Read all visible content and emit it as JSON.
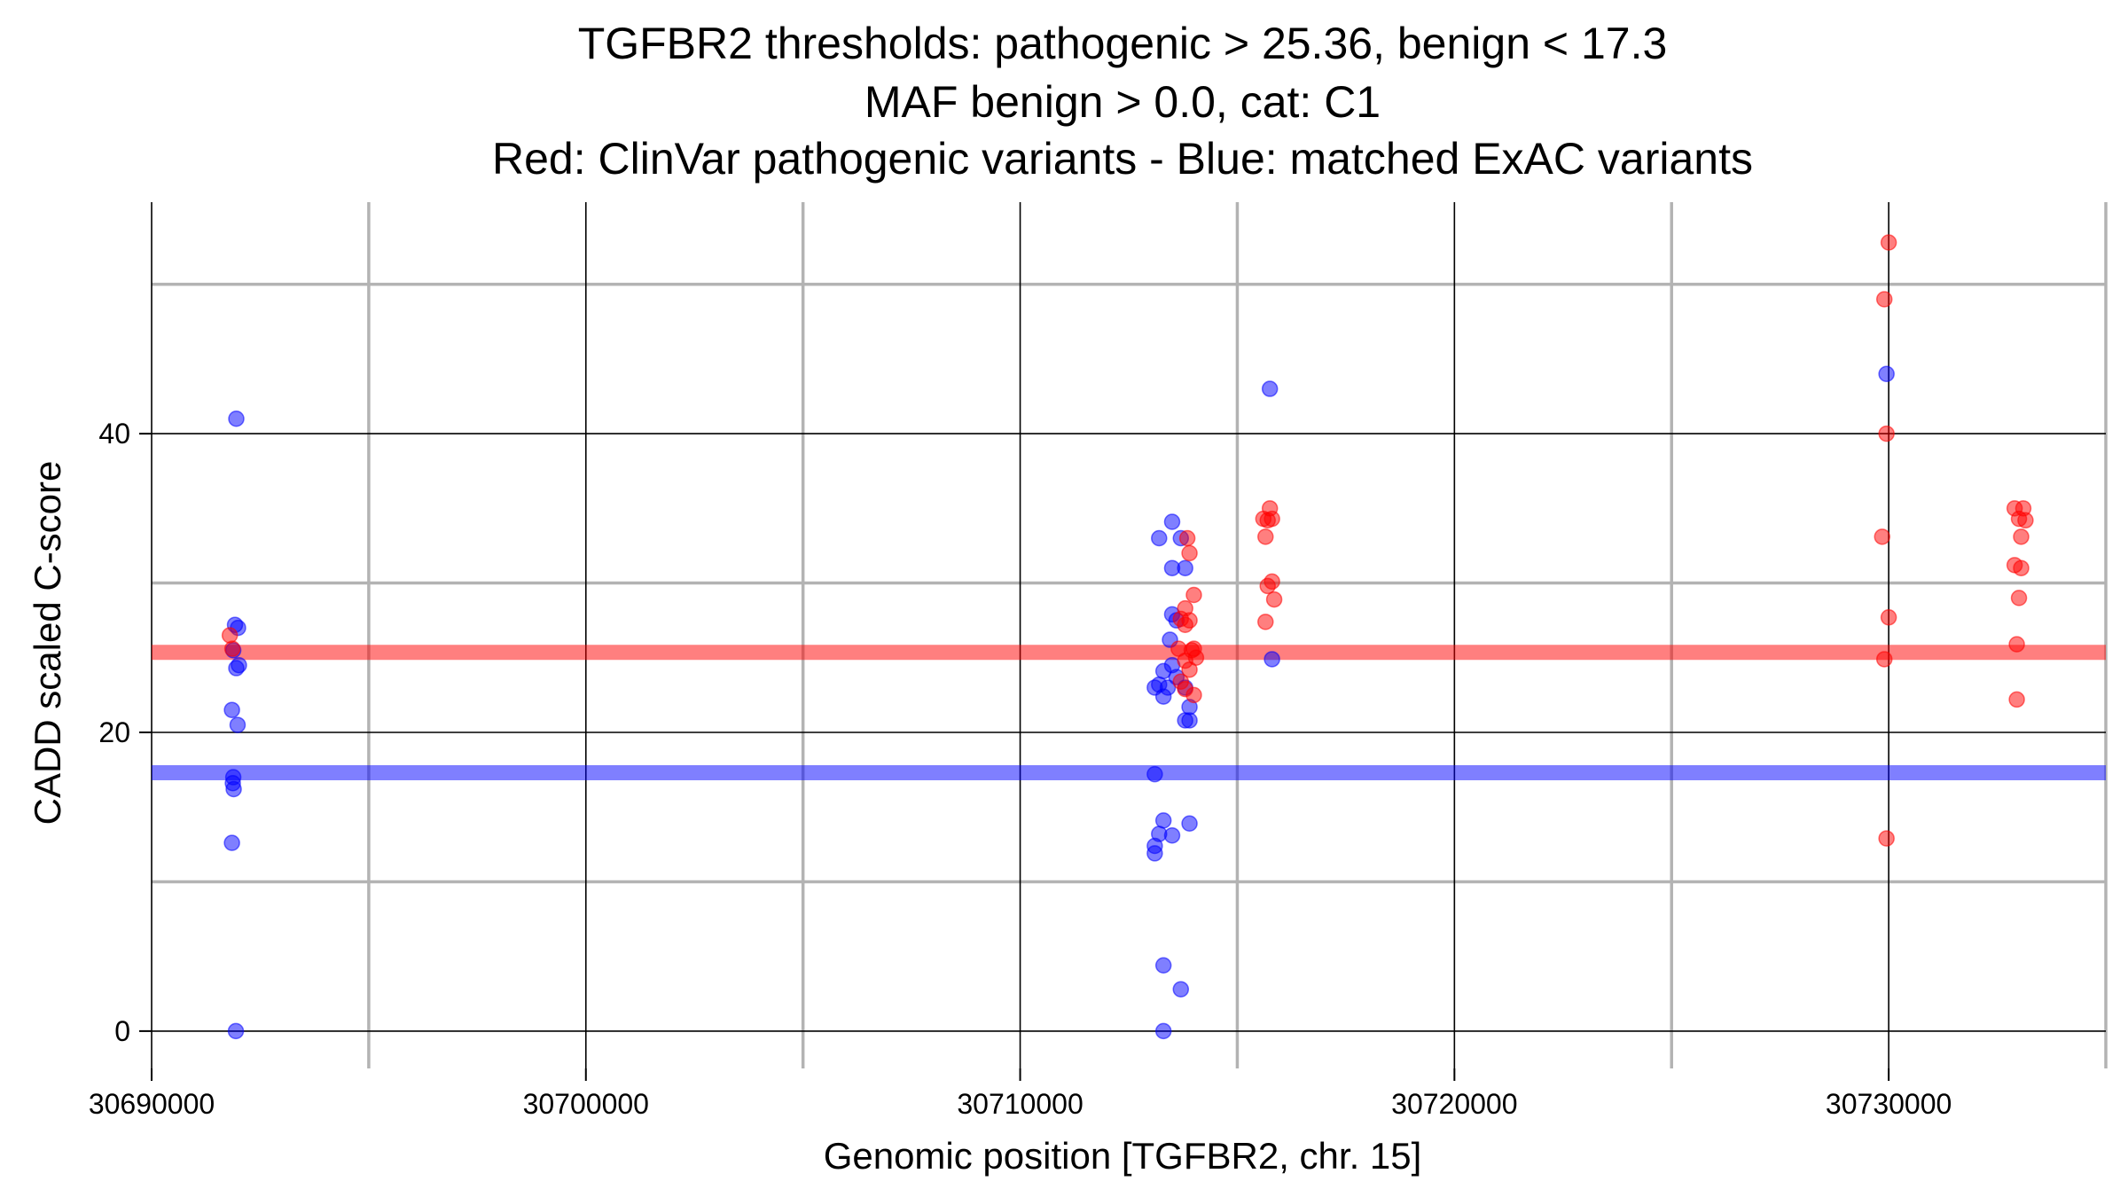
{
  "chart_data": {
    "type": "scatter",
    "title_lines": [
      "TGFBR2 thresholds: pathogenic > 25.36, benign < 17.3",
      "MAF benign > 0.0, cat: C1",
      "Red: ClinVar pathogenic variants - Blue: matched ExAC variants"
    ],
    "xlabel": "Genomic position [TGFBR2, chr. 15]",
    "ylabel": "CADD scaled C-score",
    "xlim": [
      30690000,
      30735000
    ],
    "ylim": [
      -2.5,
      55.5
    ],
    "xticks": [
      30690000,
      30700000,
      30710000,
      30720000,
      30730000
    ],
    "xtick_labels": [
      "30690000",
      "30700000",
      "30710000",
      "30720000",
      "30730000"
    ],
    "yticks": [
      0,
      20,
      40
    ],
    "ytick_labels": [
      "0",
      "20",
      "40"
    ],
    "major_gridlines_x": [
      30690000,
      30700000,
      30710000,
      30720000,
      30730000
    ],
    "minor_gridlines_x": [
      30695000,
      30705000,
      30715000,
      30725000,
      30735000
    ],
    "major_gridlines_y": [
      0,
      20,
      40
    ],
    "minor_gridlines_y": [
      10,
      30,
      50
    ],
    "grid": true,
    "thresholds": [
      {
        "value": 25.36,
        "color": "#ff0000"
      },
      {
        "value": 17.3,
        "color": "#0000ff"
      }
    ],
    "series": [
      {
        "color": "#0000ff",
        "points": [
          [
            30691950,
            41.0
          ],
          [
            30691920,
            27.2
          ],
          [
            30691990,
            27.0
          ],
          [
            30691880,
            25.5
          ],
          [
            30691950,
            24.3
          ],
          [
            30692010,
            24.5
          ],
          [
            30691850,
            21.5
          ],
          [
            30691980,
            20.5
          ],
          [
            30691880,
            17.0
          ],
          [
            30691870,
            16.6
          ],
          [
            30691890,
            16.2
          ],
          [
            30691850,
            12.6
          ],
          [
            30691940,
            0.0
          ],
          [
            30713500,
            34.1
          ],
          [
            30713200,
            33.0
          ],
          [
            30713700,
            33.0
          ],
          [
            30713500,
            31.0
          ],
          [
            30713800,
            31.0
          ],
          [
            30713500,
            27.9
          ],
          [
            30713600,
            27.5
          ],
          [
            30713450,
            26.2
          ],
          [
            30713300,
            24.1
          ],
          [
            30713500,
            24.5
          ],
          [
            30713600,
            23.7
          ],
          [
            30713100,
            23.0
          ],
          [
            30713200,
            23.2
          ],
          [
            30713400,
            23.0
          ],
          [
            30713800,
            23.0
          ],
          [
            30713300,
            22.4
          ],
          [
            30713900,
            21.7
          ],
          [
            30713800,
            20.8
          ],
          [
            30713900,
            20.8
          ],
          [
            30713100,
            17.2
          ],
          [
            30713300,
            14.1
          ],
          [
            30713900,
            13.9
          ],
          [
            30713200,
            13.2
          ],
          [
            30713500,
            13.1
          ],
          [
            30713100,
            12.4
          ],
          [
            30713100,
            11.9
          ],
          [
            30713300,
            4.4
          ],
          [
            30713700,
            2.8
          ],
          [
            30713300,
            0.0
          ],
          [
            30715750,
            43.0
          ],
          [
            30715800,
            24.9
          ],
          [
            30729950,
            44.0
          ]
        ]
      },
      {
        "color": "#ff0000",
        "points": [
          [
            30691800,
            26.5
          ],
          [
            30691860,
            25.6
          ],
          [
            30713850,
            33.0
          ],
          [
            30713900,
            32.0
          ],
          [
            30714000,
            29.2
          ],
          [
            30713800,
            28.3
          ],
          [
            30713700,
            27.6
          ],
          [
            30713900,
            27.5
          ],
          [
            30713800,
            27.2
          ],
          [
            30713650,
            25.6
          ],
          [
            30713950,
            25.5
          ],
          [
            30714000,
            25.6
          ],
          [
            30713800,
            24.8
          ],
          [
            30713900,
            24.2
          ],
          [
            30713700,
            23.4
          ],
          [
            30713800,
            22.9
          ],
          [
            30714000,
            22.5
          ],
          [
            30714050,
            25.0
          ],
          [
            30715600,
            34.3
          ],
          [
            30715700,
            34.2
          ],
          [
            30715800,
            34.3
          ],
          [
            30715750,
            35.0
          ],
          [
            30715650,
            33.1
          ],
          [
            30715700,
            29.8
          ],
          [
            30715800,
            30.1
          ],
          [
            30715850,
            28.9
          ],
          [
            30715650,
            27.4
          ],
          [
            30730000,
            52.8
          ],
          [
            30729900,
            49.0
          ],
          [
            30729950,
            40.0
          ],
          [
            30729850,
            33.1
          ],
          [
            30730000,
            27.7
          ],
          [
            30729900,
            24.9
          ],
          [
            30729950,
            12.9
          ],
          [
            30732900,
            35.0
          ],
          [
            30733100,
            35.0
          ],
          [
            30733000,
            34.3
          ],
          [
            30733150,
            34.2
          ],
          [
            30733050,
            33.1
          ],
          [
            30732900,
            31.2
          ],
          [
            30733050,
            31.0
          ],
          [
            30733000,
            29.0
          ],
          [
            30732950,
            25.9
          ],
          [
            30732950,
            22.2
          ]
        ]
      }
    ]
  }
}
